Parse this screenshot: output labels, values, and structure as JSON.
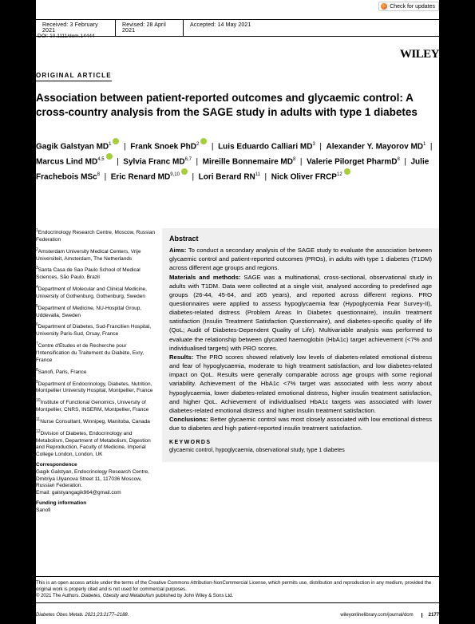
{
  "badge": {
    "text": "Check for updates"
  },
  "header": {
    "received": "Received: 3 February 2021",
    "revised": "Revised: 28 April 2021",
    "accepted": "Accepted: 14 May 2021"
  },
  "doi": "DOI: 10.1111/dom.14444",
  "publisher": "WILEY",
  "section": "ORIGINAL ARTICLE",
  "title": "Association between patient-reported outcomes and glycaemic control: A cross-country analysis from the SAGE study in adults with type 1 diabetes",
  "authors_html": "<span class='name'>Gagik Galstyan MD</span><sup>1</sup><span class='orcid'></span> &nbsp;|&nbsp; <span class='name'>Frank Snoek PhD</span><sup>2</sup><span class='orcid'></span> &nbsp;|&nbsp; <span class='name'>Luis Eduardo Calliari MD</span><sup>3</sup> &nbsp;|&nbsp; <span class='name'>Alexander Y. Mayorov MD</span><sup>1</sup> &nbsp;|&nbsp; <span class='name'>Marcus Lind MD</span><sup>4,5</sup><span class='orcid'></span> &nbsp;|&nbsp; <span class='name'>Sylvia Franc MD</span><sup>6,7</sup> &nbsp;|&nbsp; <span class='name'>Mireille Bonnemaire MD</span><sup>8</sup> &nbsp;|&nbsp; <span class='name'>Valerie Pilorget PharmD</span><sup>8</sup> &nbsp;|&nbsp; <span class='name'>Julie Frachebois MSc</span><sup>8</sup> &nbsp;|&nbsp; <span class='name'>Eric Renard MD</span><sup>9,10</sup><span class='orcid'></span> &nbsp;|&nbsp; <span class='name'>Lori Berard RN</span><sup>11</sup> &nbsp;|&nbsp; <span class='name'>Nick Oliver FRCP</span><sup>12</sup><span class='orcid'></span>",
  "affiliations": [
    "<sup>1</sup>Endocrinology Research Centre, Moscow, Russian Federation",
    "<sup>2</sup>Amsterdam University Medical Centers, Vrije Universiteit, Amsterdam, The Netherlands",
    "<sup>3</sup>Santa Casa de Sao Paulo School of Medical Sciences, São Paulo, Brazil",
    "<sup>4</sup>Department of Molecular and Clinical Medicine, University of Gothenburg, Gothenburg, Sweden",
    "<sup>5</sup>Department of Medicine, NU-Hospital Group, Uddevalla, Sweden",
    "<sup>6</sup>Department of Diabetes, Sud-Francilien Hospital, University Paris-Sud, Orsay, France",
    "<sup>7</sup>Centre d'Etudes et de Recherche pour l'Intensification du Traitement du Diabète, Evry, France",
    "<sup>8</sup>Sanofi, Paris, France",
    "<sup>9</sup>Department of Endocrinology, Diabetes, Nutrition, Montpellier University Hospital, Montpellier, France",
    "<sup>10</sup>Institute of Functional Genomics, University of Montpellier, CNRS, INSERM, Montpellier, France",
    "<sup>11</sup>Nurse Consultant, Winnipeg, Manitoba, Canada",
    "<sup>12</sup>Division of Diabetes, Endocrinology and Metabolism, Department of Metabolism, Digestion and Reproduction, Faculty of Medicine, Imperial College London, London, UK"
  ],
  "correspondence": {
    "head": "Correspondence",
    "body": "Gagik Galstyan, Endocrinology Research Centre, Dmitriya Ulyanova Street 11, 117036 Moscow, Russian Federation.",
    "email": "Email: galstyangagik964@gmail.com"
  },
  "funding": {
    "head": "Funding information",
    "body": "Sanofi"
  },
  "abstract": {
    "heading": "Abstract",
    "aims": "To conduct a secondary analysis of the SAGE study to evaluate the association between glycaemic control and patient-reported outcomes (PROs), in adults with type 1 diabetes (T1DM) across different age groups and regions.",
    "methods": "SAGE was a multinational, cross-sectional, observational study in adults with T1DM. Data were collected at a single visit, analysed according to predefined age groups (26-44, 45-64, and ≥65 years), and reported across different regions. PRO questionnaires were applied to assess hypoglycaemia fear (Hypoglycemia Fear Survey-II), diabetes-related distress (Problem Areas In Diabetes questionnaire), insulin treatment satisfaction (Insulin Treatment Satisfaction Questionnaire), and diabetes-specific quality of life (QoL; Audit of Diabetes-Dependent Quality of Life). Multivariable analysis was performed to evaluate the relationship between glycated haemoglobin (HbA1c) target achievement (<7% and individualised targets) with PRO scores.",
    "results": "The PRO scores showed relatively low levels of diabetes-related emotional distress and fear of hypoglycaemia, moderate to high treatment satisfaction, and low diabetes-related impact on QoL. Results were generally comparable across age groups with some regional variability. Achievement of the HbA1c <7% target was associated with less worry about hypoglycaemia, lower diabetes-related emotional distress, higher insulin treatment satisfaction, and higher QoL. Achievement of individualised HbA1c targets was associated with lower diabetes-related emotional distress and higher insulin treatment satisfaction.",
    "conclusions": "Better glycaemic control was most closely associated with low emotional distress due to diabetes and high patient-reported insulin treatment satisfaction.",
    "kw_head": "KEYWORDS",
    "kw": "glycaemic control, hypoglycaemia, observational study, type 1 diabetes"
  },
  "license": "This is an open access article under the terms of the Creative Commons Attribution-NonCommercial License, which permits use, distribution and reproduction in any medium, provided the original work is properly cited and is not used for commercial purposes.<br>© 2021 The Authors. <i>Diabetes, Obesity and Metabolism</i> published by John Wiley & Sons Ltd.",
  "footer": {
    "journal": "Diabetes Obes Metab. 2021;23:2177–2188.",
    "url": "wileyonlinelibrary.com/journal/dom",
    "page": "2177"
  }
}
